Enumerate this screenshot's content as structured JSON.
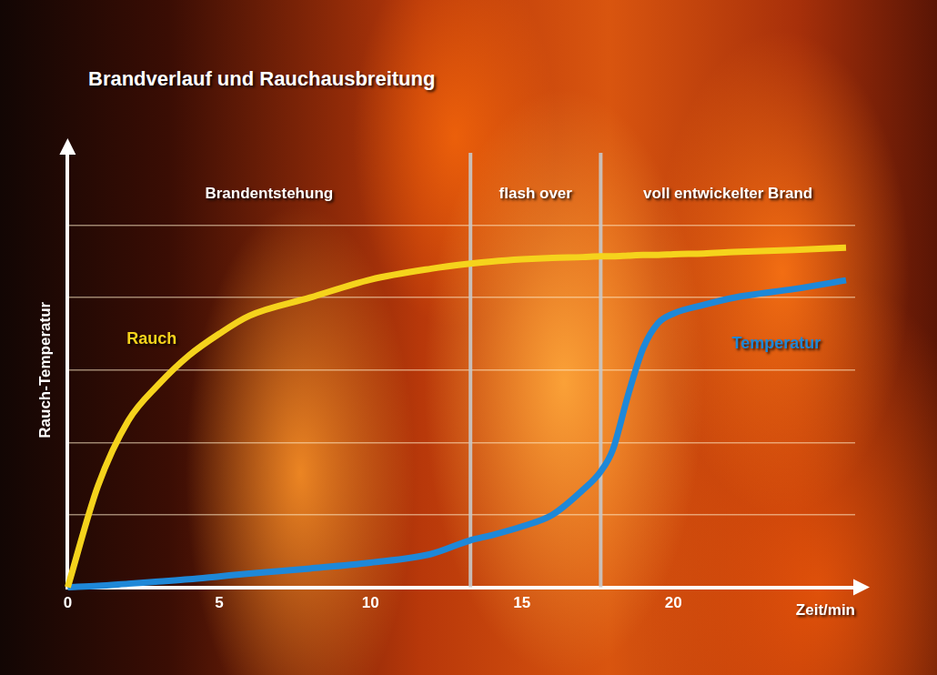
{
  "chart_data": {
    "type": "line",
    "title": "Brandverlauf und Rauchausbreitung",
    "x_label": "Zeit/min",
    "y_label": "Rauch-Temperatur",
    "x": [
      0,
      1,
      2,
      3,
      4,
      5,
      6,
      8,
      10,
      12,
      13.3,
      14,
      15,
      16,
      17,
      17.6,
      18,
      18.5,
      19,
      19.5,
      20,
      21,
      22,
      24,
      25.7
    ],
    "series": [
      {
        "name": "Rauch",
        "color": "#f5d31c",
        "values": [
          0,
          1.4,
          2.3,
          2.8,
          3.2,
          3.5,
          3.75,
          4.0,
          4.25,
          4.4,
          4.47,
          4.5,
          4.53,
          4.55,
          4.56,
          4.57,
          4.57,
          4.58,
          4.59,
          4.59,
          4.6,
          4.61,
          4.63,
          4.66,
          4.69
        ]
      },
      {
        "name": "Temperatur",
        "color": "#1e88d8",
        "values": [
          0,
          0.02,
          0.05,
          0.08,
          0.11,
          0.15,
          0.19,
          0.26,
          0.34,
          0.46,
          0.65,
          0.72,
          0.84,
          1.0,
          1.34,
          1.6,
          1.9,
          2.65,
          3.3,
          3.65,
          3.78,
          3.9,
          4.0,
          4.12,
          4.24
        ]
      }
    ],
    "annotations": [
      {
        "text": "Brandentstehung",
        "x_start": 0,
        "x_end": 13.3
      },
      {
        "text": "flash over",
        "x_start": 13.3,
        "x_end": 17.6
      },
      {
        "text": "voll entwickelter Brand",
        "x_start": 17.6,
        "x_end": 26
      }
    ],
    "xlim": [
      0,
      26
    ],
    "xticks": [
      0,
      5,
      10,
      15,
      20
    ],
    "ylim": [
      0,
      6
    ],
    "yticks": [
      0,
      1,
      2,
      3,
      4,
      5
    ],
    "grid": true,
    "tick_labels": "x"
  }
}
